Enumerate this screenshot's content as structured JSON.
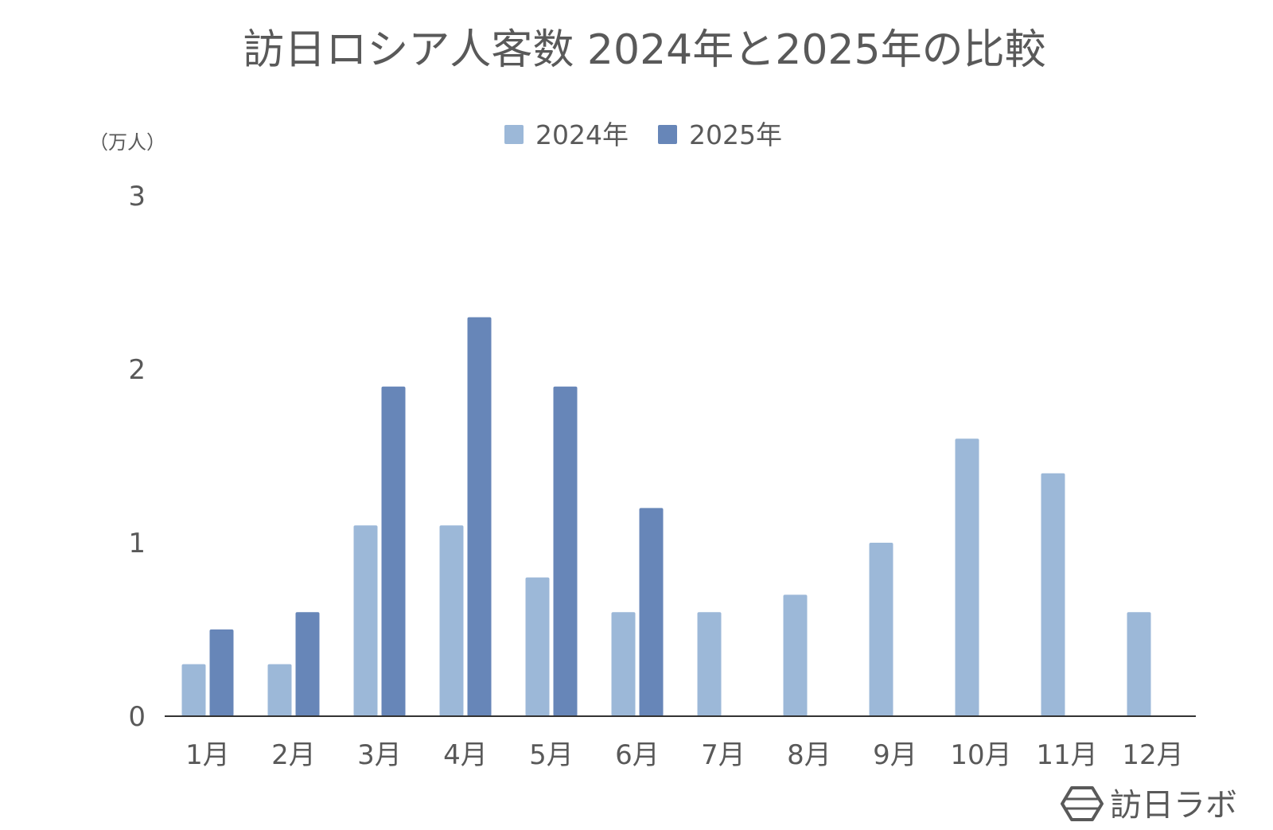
{
  "chart_data": {
    "type": "bar",
    "title": "訪日ロシア人客数 2024年と2025年の比較",
    "ylabel": "（万人）",
    "xlabel": "",
    "categories": [
      "1月",
      "2月",
      "3月",
      "4月",
      "5月",
      "6月",
      "7月",
      "8月",
      "9月",
      "10月",
      "11月",
      "12月"
    ],
    "series": [
      {
        "name": "2024年",
        "color": "#9cb8d8",
        "values": [
          0.3,
          0.3,
          1.1,
          1.1,
          0.8,
          0.6,
          0.6,
          0.7,
          1.0,
          1.6,
          1.4,
          0.6
        ]
      },
      {
        "name": "2025年",
        "color": "#6786b8",
        "values": [
          0.5,
          0.6,
          1.9,
          2.3,
          1.9,
          1.2,
          null,
          null,
          null,
          null,
          null,
          null
        ]
      }
    ],
    "ylim": [
      0,
      3
    ],
    "yticks": [
      0,
      1,
      2,
      3
    ],
    "grid": false,
    "legend": "top-center"
  },
  "brand": {
    "name": "訪日ラボ",
    "logo_icon": "hexagon-logo-icon"
  }
}
